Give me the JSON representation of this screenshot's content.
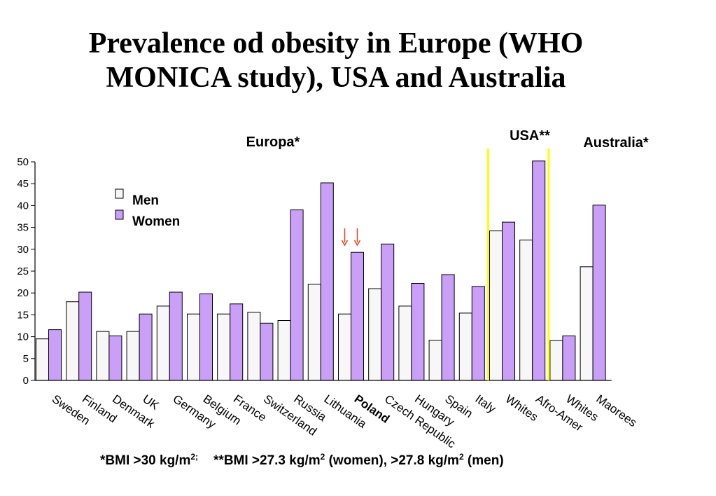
{
  "title": "Prevalence  od obesity in Europe (WHO MONICA study), USA and Australia",
  "chart_data": {
    "type": "bar",
    "categories": [
      "Sweden",
      "Finland",
      "Denmark",
      "UK",
      "Germany",
      "Belgium",
      "France",
      "Switzerland",
      "Russia",
      "Lithuania",
      "Poland",
      "Czech Republic",
      "Hungary",
      "Spain",
      "Italy",
      "Whites",
      "Afro-Amer",
      "Whites",
      "Maorees"
    ],
    "series": [
      {
        "name": "Men",
        "color": "#f7f7f7",
        "values": [
          9.5,
          18,
          11.2,
          11.2,
          17,
          15.2,
          15.2,
          15.6,
          13.7,
          22,
          15.2,
          21,
          17,
          9.2,
          15.4,
          34.2,
          32.1,
          9.1,
          26
        ]
      },
      {
        "name": "Women",
        "color": "#c99ff7",
        "values": [
          11.6,
          20.2,
          10.2,
          15.2,
          20.2,
          19.8,
          17.5,
          13.1,
          39,
          45.2,
          29.3,
          31.2,
          22.2,
          24.2,
          21.5,
          36.2,
          50.2,
          10.2,
          40.1
        ]
      }
    ],
    "ylim": [
      0,
      50
    ],
    "yticks": [
      0,
      5,
      10,
      15,
      20,
      25,
      30,
      35,
      40,
      45,
      50
    ],
    "xlabel": "",
    "ylabel": "",
    "grid": false,
    "legend_position": "top-left",
    "group_labels": [
      "Europa*",
      "USA**",
      "Australia*"
    ],
    "highlighted_category": "Poland",
    "annotations": [
      {
        "type": "arrow",
        "direction": "down",
        "color": "#e8401a",
        "category": "Poland",
        "series": "Men"
      },
      {
        "type": "arrow",
        "direction": "down",
        "color": "#e8401a",
        "category": "Poland",
        "series": "Women"
      }
    ],
    "separator_color": "#ffff00",
    "separators_after": [
      "Italy",
      "Afro-Amer"
    ]
  },
  "footnote": {
    "bmi_eu_prefix": "*BMI >30 kg/m",
    "bmi_eu_sup": "2;",
    "bmi_us_prefix": "**BMI >27.3 kg/m",
    "bmi_us_sup": "2",
    "bmi_us_mid": " (women),  >27.8 kg/m",
    "bmi_us_sup2": "2",
    "bmi_us_suffix": " (men)"
  }
}
